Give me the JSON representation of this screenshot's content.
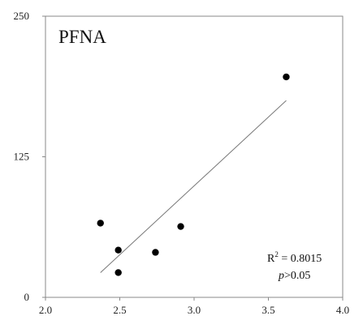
{
  "chart_data": {
    "type": "scatter",
    "title": "PFNA",
    "xlabel": "",
    "ylabel": "",
    "xlim": [
      2.0,
      4.0
    ],
    "ylim": [
      0,
      250
    ],
    "xticks": [
      "2.0",
      "2.5",
      "3.0",
      "3.5",
      "4.0"
    ],
    "yticks": [
      "0",
      "125",
      "250"
    ],
    "points": [
      {
        "x": 2.37,
        "y": 66
      },
      {
        "x": 2.49,
        "y": 42
      },
      {
        "x": 2.49,
        "y": 22
      },
      {
        "x": 2.74,
        "y": 40
      },
      {
        "x": 2.91,
        "y": 63
      },
      {
        "x": 3.62,
        "y": 196
      }
    ],
    "trendline": {
      "x": [
        2.37,
        3.62
      ],
      "y": [
        22,
        175
      ]
    },
    "annotations": {
      "r2_prefix": "R",
      "r2_sup": "2",
      "r2_value": " = 0.8015",
      "p_italic": "p",
      "p_rest": ">0.05"
    },
    "grid": false,
    "legend": "none",
    "colors": {
      "point": "#000000",
      "trendline": "#777777",
      "axis": "#888888"
    }
  }
}
